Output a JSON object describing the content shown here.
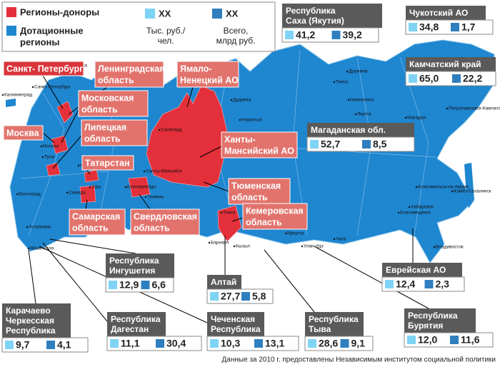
{
  "legend": {
    "donors": "Регионы-доноры",
    "subsidized": [
      "Дотационные",
      "регионы"
    ],
    "per_capita": {
      "label": "ХХ",
      "caption": [
        "Тыс. руб./",
        "чел."
      ]
    },
    "total": {
      "label": "ХХ",
      "caption": [
        "Всего,",
        "млрд руб."
      ]
    }
  },
  "donor_regions": [
    {
      "name": [
        "Санкт- Петербург"
      ]
    },
    {
      "name": [
        "Ленинградская",
        "область"
      ]
    },
    {
      "name": [
        "Московская",
        "область"
      ]
    },
    {
      "name": [
        "Москва"
      ]
    },
    {
      "name": [
        "Липецкая",
        "область"
      ]
    },
    {
      "name": [
        "Татарстан"
      ]
    },
    {
      "name": [
        "Самарская",
        "область"
      ]
    },
    {
      "name": [
        "Свердловская",
        "область"
      ]
    },
    {
      "name": [
        "Ямало-",
        "Ненецкий АО"
      ]
    },
    {
      "name": [
        "Ханты-",
        "Мансийский АО"
      ]
    },
    {
      "name": [
        "Тюменская",
        "область"
      ]
    },
    {
      "name": [
        "Кемеровская",
        "область"
      ]
    }
  ],
  "subsidized_regions": [
    {
      "name": [
        "Республика",
        "Саха (Якутия)"
      ],
      "per_capita": "41,2",
      "total": "39,2"
    },
    {
      "name": [
        "Чукотский АО"
      ],
      "per_capita": "34,8",
      "total": "1,7"
    },
    {
      "name": [
        "Камчатский край"
      ],
      "per_capita": "65,0",
      "total": "22,2"
    },
    {
      "name": [
        "Магаданская обл."
      ],
      "per_capita": "52,7",
      "total": "8,5"
    },
    {
      "name": [
        "Еврейская АО"
      ],
      "per_capita": "12,4",
      "total": "2,3"
    },
    {
      "name": [
        "Республика",
        "Бурятия"
      ],
      "per_capita": "12,0",
      "total": "11,6"
    },
    {
      "name": [
        "Республика",
        "Тыва"
      ],
      "per_capita": "28,6",
      "total": "9,1"
    },
    {
      "name": [
        "Алтай"
      ],
      "per_capita": "27,7",
      "total": "5,8"
    },
    {
      "name": [
        "Чеченская",
        "Республика"
      ],
      "per_capita": "10,3",
      "total": "13,1"
    },
    {
      "name": [
        "Республика",
        "Дагестан"
      ],
      "per_capita": "11,1",
      "total": "30,4"
    },
    {
      "name": [
        "Карачаево",
        "Черкесская",
        "Республика"
      ],
      "per_capita": "9,7",
      "total": "4,1"
    },
    {
      "name": [
        "Республика",
        "Ингушетия"
      ],
      "per_capita": "12,9",
      "total": "6,6"
    }
  ],
  "cities": [
    "Калининград",
    "Санкт-Петербург",
    "Мурманск",
    "Архангельск",
    "Сыктывкар",
    "Дудинка",
    "Тикси",
    "Нижнеянск",
    "Дружина",
    "Якутск",
    "Анадырь",
    "Петропавловск-Камчатский",
    "Магадан",
    "Хабаровск",
    "Комсомольск-на-Амуре",
    "Южно-Сахалинск",
    "Благовещенск",
    "Владивосток",
    "Чита",
    "Иркутск",
    "Улан-Удэ",
    "Кызыл",
    "Барнаул",
    "Томск",
    "Омск",
    "Тюмень",
    "Екатеринбург",
    "Ханты-Мансийск",
    "Салехард",
    "Уфа",
    "Казань",
    "Самара",
    "Волгоград",
    "Астрахань",
    "Махачкала",
    "Москва",
    "Тула",
    "Норильск"
  ],
  "footer": "Данные за 2010 г. предоставлены Независимым институтом социальной политики"
}
